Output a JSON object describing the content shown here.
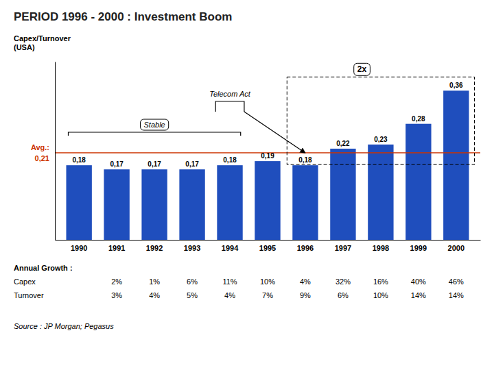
{
  "chart_data": {
    "type": "bar",
    "title": "PERIOD 1996 - 2000 : Investment Boom",
    "ylabel": "Capex/Turnover\n(USA)",
    "categories": [
      "1990",
      "1991",
      "1992",
      "1993",
      "1994",
      "1995",
      "1996",
      "1997",
      "1998",
      "1999",
      "2000"
    ],
    "values": [
      0.18,
      0.17,
      0.17,
      0.17,
      0.18,
      0.19,
      0.18,
      0.22,
      0.23,
      0.28,
      0.36
    ],
    "value_labels": [
      "0,18",
      "0,17",
      "0,17",
      "0,17",
      "0,18",
      "0,19",
      "0,18",
      "0,22",
      "0,23",
      "0,28",
      "0,36"
    ],
    "data_labels": true,
    "color": "#1F4EBD",
    "ylim": [
      0,
      0.43
    ],
    "tick_labels": "x",
    "grid": false,
    "reference_line": {
      "value": 0.21,
      "label": "Avg.:",
      "value_label": "0,21",
      "color": "#CC3300"
    },
    "annotations": [
      {
        "text": "Stable",
        "shape": "bracket",
        "from": "1990",
        "to": "1994"
      },
      {
        "text": "Telecom Act",
        "shape": "bracket",
        "from": "1994",
        "to": "1994",
        "arrow_to": "1996"
      },
      {
        "text": "2x",
        "shape": "dashed_box",
        "from": "1996",
        "to": "2000"
      }
    ],
    "table": {
      "title": "Annual Growth :",
      "rows": [
        {
          "name": "Capex",
          "labels": [
            null,
            "2%",
            "1%",
            "6%",
            "11%",
            "10%",
            "4%",
            "32%",
            "16%",
            "40%",
            "46%"
          ]
        },
        {
          "name": "Turnover",
          "labels": [
            null,
            "3%",
            "4%",
            "5%",
            "4%",
            "7%",
            "9%",
            "6%",
            "10%",
            "14%",
            "14%"
          ]
        }
      ]
    },
    "source": "Source : JP Morgan; Pegasus"
  }
}
